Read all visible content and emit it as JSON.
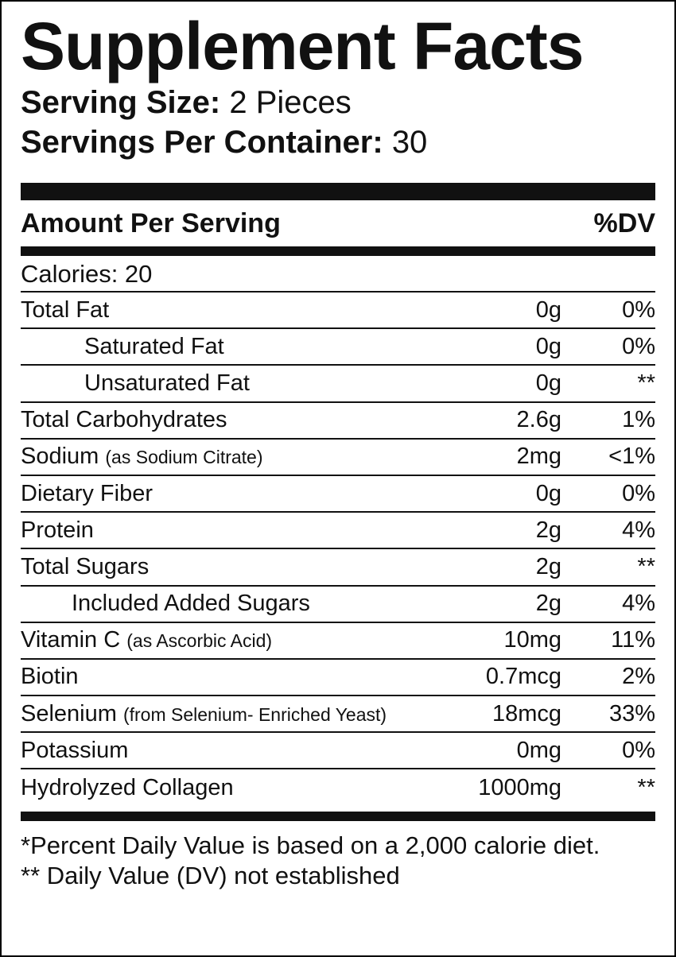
{
  "title": "Supplement Facts",
  "serving_size": {
    "label": "Serving Size:",
    "value": "2 Pieces"
  },
  "servings_per_container": {
    "label": "Servings Per Container:",
    "value": "30"
  },
  "header": {
    "amount_label": "Amount Per Serving",
    "dv_label": "%DV"
  },
  "calories": "Calories: 20",
  "rows": [
    {
      "name": "Total Fat",
      "note": "",
      "amount": "0g",
      "dv": "0%"
    },
    {
      "name": "Saturated Fat",
      "note": "",
      "amount": "0g",
      "dv": "0%"
    },
    {
      "name": "Unsaturated Fat",
      "note": "",
      "amount": "0g",
      "dv": "**"
    },
    {
      "name": "Total Carbohydrates",
      "note": "",
      "amount": "2.6g",
      "dv": "1%"
    },
    {
      "name": "Sodium",
      "note": "(as Sodium Citrate)",
      "amount": "2mg",
      "dv": "<1%"
    },
    {
      "name": "Dietary Fiber",
      "note": "",
      "amount": "0g",
      "dv": "0%"
    },
    {
      "name": "Protein",
      "note": "",
      "amount": "2g",
      "dv": "4%"
    },
    {
      "name": "Total Sugars",
      "note": "",
      "amount": "2g",
      "dv": "**"
    },
    {
      "name": "Included Added Sugars",
      "note": "",
      "amount": "2g",
      "dv": "4%"
    },
    {
      "name": "Vitamin C",
      "note": "(as Ascorbic Acid)",
      "amount": "10mg",
      "dv": "11%"
    },
    {
      "name": "Biotin",
      "note": "",
      "amount": "0.7mcg",
      "dv": "2%"
    },
    {
      "name": "Selenium",
      "note": "(from Selenium- Enriched Yeast)",
      "amount": "18mcg",
      "dv": "33%"
    },
    {
      "name": "Potassium",
      "note": "",
      "amount": "0mg",
      "dv": "0%"
    },
    {
      "name": "Hydrolyzed Collagen",
      "note": "",
      "amount": "1000mg",
      "dv": "**"
    }
  ],
  "footnotes": [
    "*Percent Daily Value is based on a 2,000 calorie diet.",
    "** Daily Value (DV) not established"
  ]
}
